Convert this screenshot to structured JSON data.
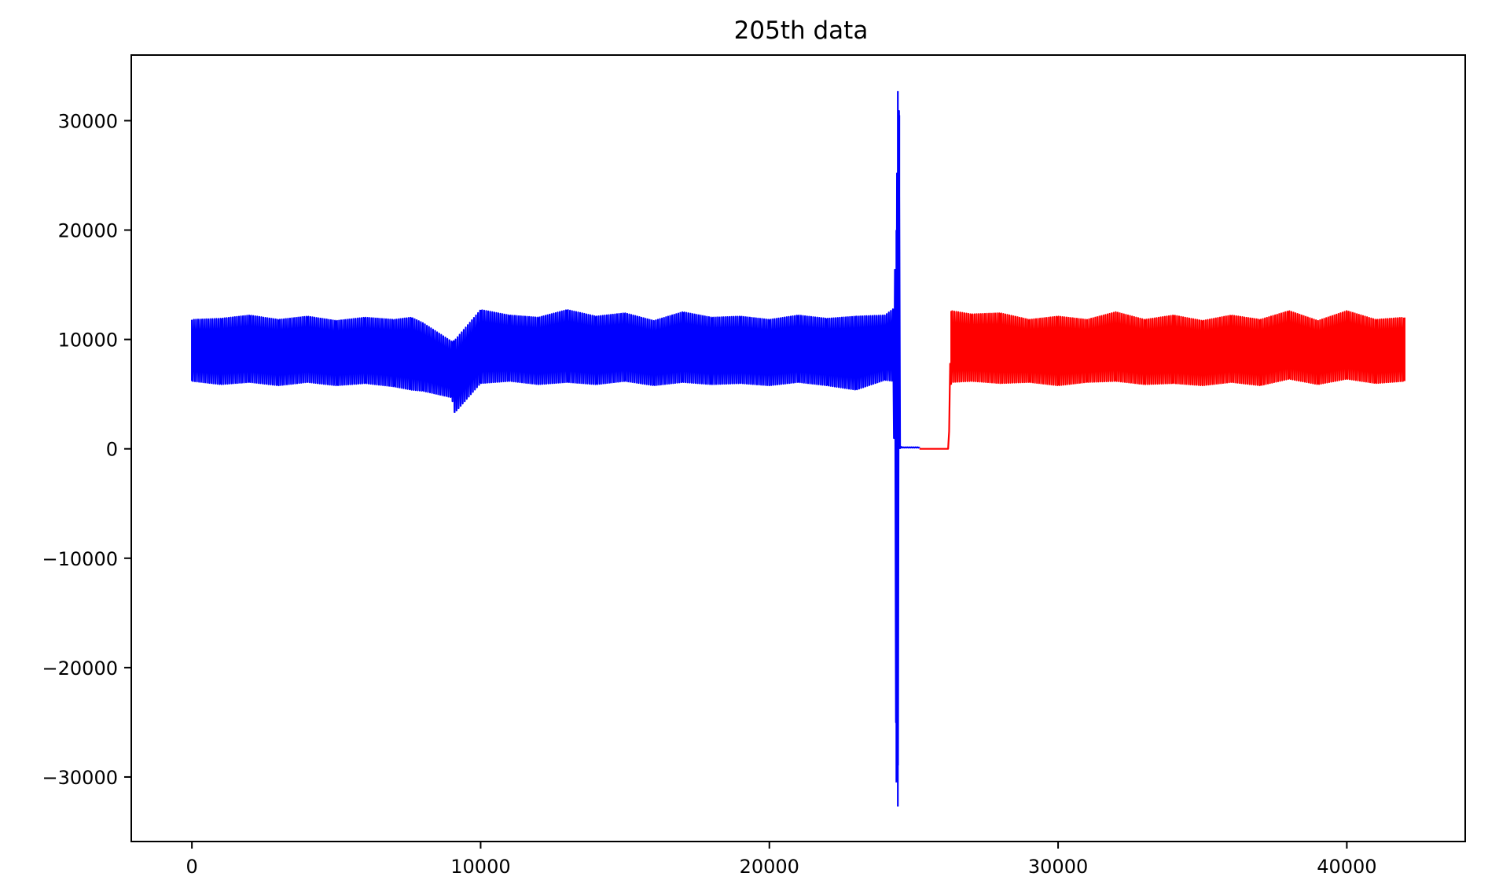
{
  "chart_data": {
    "type": "line",
    "title": "205th data",
    "xlabel": "",
    "ylabel": "",
    "xlim": [
      -2100,
      44100
    ],
    "ylim": [
      -35900,
      36000
    ],
    "xticks": [
      0,
      10000,
      20000,
      30000,
      40000
    ],
    "xtick_labels": [
      "0",
      "10000",
      "20000",
      "30000",
      "40000"
    ],
    "yticks": [
      -30000,
      -20000,
      -10000,
      0,
      10000,
      20000,
      30000
    ],
    "ytick_labels": [
      "−30000",
      "−20000",
      "−10000",
      "0",
      "10000",
      "20000",
      "30000"
    ],
    "grid": false,
    "legend": false,
    "series": [
      {
        "color": "#0000ff",
        "description": "oscillating signal, band ~6000–12000, with spikes to +32700 / -32700 near x=24500, then near-zero segment",
        "x": [
          0,
          1000,
          2000,
          3000,
          4000,
          5000,
          6000,
          7000,
          7600,
          8000,
          9000,
          9100,
          10000,
          11000,
          12000,
          13000,
          14000,
          15000,
          16000,
          17000,
          18000,
          19000,
          20000,
          21000,
          22000,
          23000,
          24000,
          24300,
          24400,
          24450,
          24500,
          24550,
          24600,
          25000,
          25200
        ],
        "upper": [
          11800,
          11900,
          12200,
          11800,
          12100,
          11700,
          12000,
          11800,
          12000,
          11500,
          9800,
          9900,
          12700,
          12200,
          12000,
          12700,
          12100,
          12400,
          11700,
          12500,
          12000,
          12100,
          11800,
          12200,
          11900,
          12100,
          12200,
          12800,
          20000,
          32700,
          30500,
          200,
          150,
          150,
          150
        ],
        "lower": [
          6200,
          5900,
          6100,
          5800,
          6100,
          5800,
          6000,
          5700,
          5400,
          5300,
          4700,
          3300,
          6000,
          6200,
          5900,
          6100,
          5900,
          6200,
          5800,
          6100,
          5900,
          6000,
          5800,
          6100,
          5800,
          5400,
          6300,
          6200,
          -30500,
          -32700,
          0,
          100,
          100,
          100,
          100
        ]
      },
      {
        "color": "#ff0000",
        "description": "near-zero segment then oscillating signal, band ~6000–12500",
        "x": [
          25200,
          26000,
          26200,
          26300,
          27000,
          28000,
          29000,
          30000,
          31000,
          32000,
          33000,
          34000,
          35000,
          36000,
          37000,
          38000,
          39000,
          40000,
          41000,
          42000
        ],
        "upper": [
          0,
          0,
          0,
          12600,
          12300,
          12400,
          11800,
          12100,
          11800,
          12500,
          11800,
          12200,
          11700,
          12200,
          11800,
          12600,
          11700,
          12600,
          11800,
          12000
        ],
        "lower": [
          0,
          0,
          0,
          6100,
          6200,
          6000,
          6100,
          5800,
          6100,
          6200,
          5900,
          6000,
          5800,
          6100,
          5800,
          6400,
          5900,
          6400,
          6000,
          6200
        ]
      }
    ]
  }
}
